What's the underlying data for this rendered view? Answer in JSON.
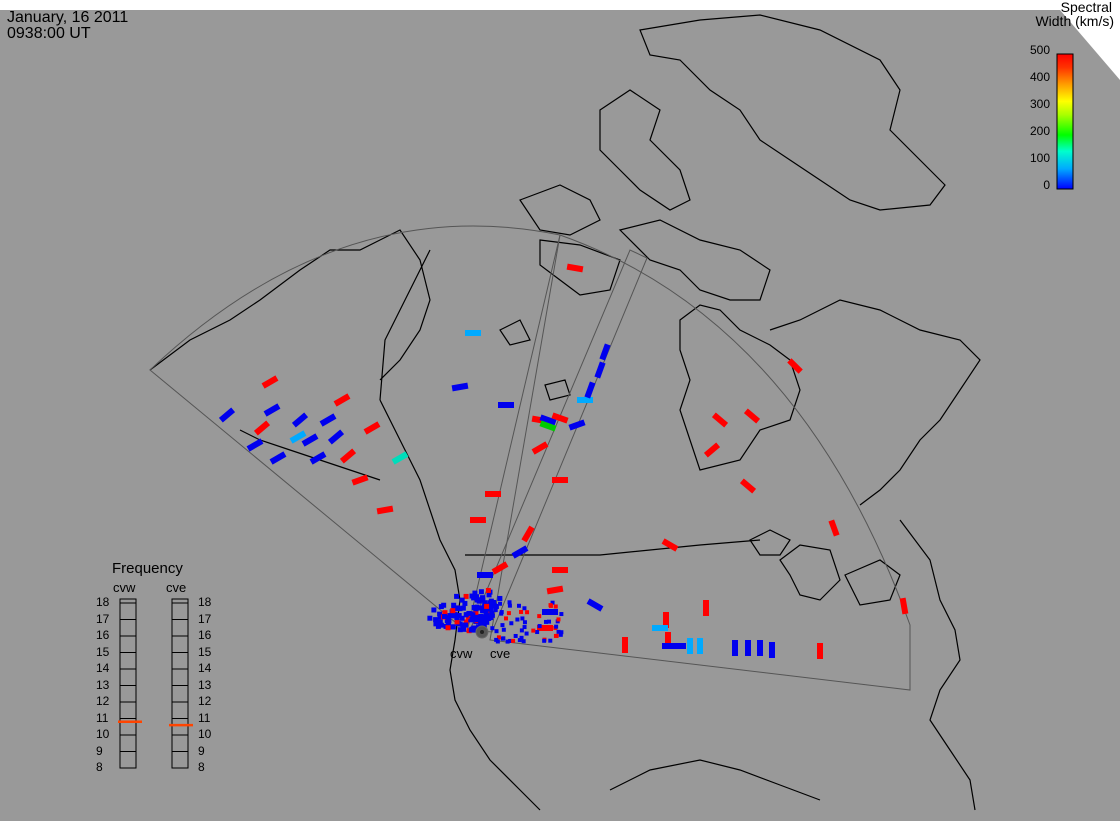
{
  "header": {
    "date": "January, 16 2011",
    "time": "0938:00 UT"
  },
  "colorbar": {
    "title_line1": "Spectral",
    "title_line2": "Width (km/s)",
    "ticks": [
      "500",
      "400",
      "300",
      "200",
      "100",
      "0"
    ],
    "colors": [
      "#0000ff",
      "#00b0ff",
      "#00ffcc",
      "#00ff00",
      "#aaff00",
      "#ffff00",
      "#ffaa00",
      "#ff5500",
      "#ff0000"
    ]
  },
  "radars": {
    "west_label": "cvw",
    "east_label": "cve"
  },
  "frequency": {
    "title": "Frequency",
    "cols": [
      "cvw",
      "cve"
    ],
    "ticks": [
      "18",
      "17",
      "16",
      "15",
      "14",
      "13",
      "12",
      "11",
      "10",
      "9",
      "8"
    ],
    "cvw_value": 10.8,
    "cve_value": 10.6,
    "indicator_color": "#ff4400"
  },
  "map": {
    "background": "#999999",
    "land_outline": "#000000",
    "fov_outline": "#555555"
  }
}
